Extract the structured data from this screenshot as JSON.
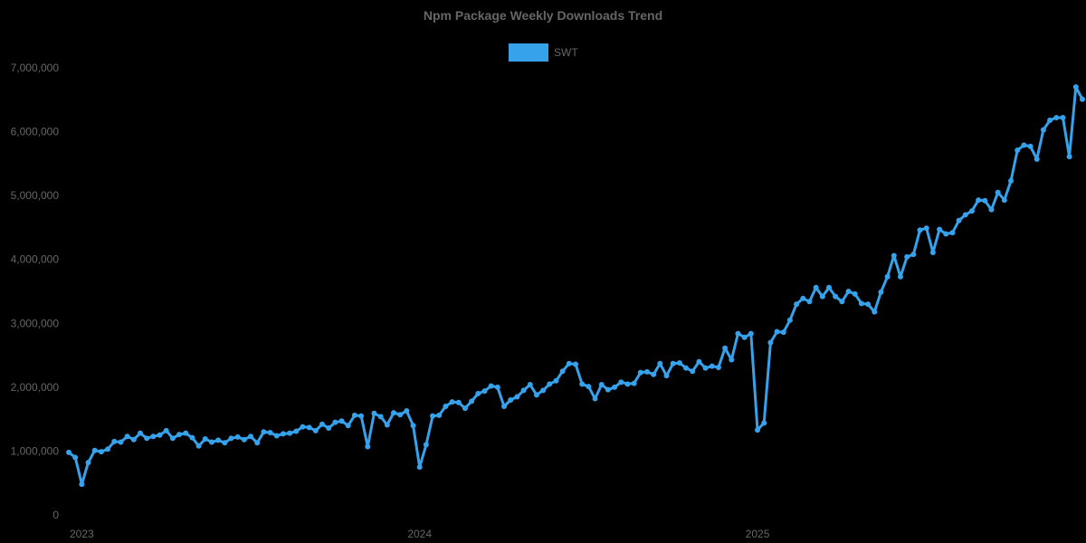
{
  "chart_data": {
    "type": "line",
    "title": "Npm Package Weekly Downloads Trend",
    "xlabel": "",
    "ylabel": "",
    "ylim": [
      0,
      7000000
    ],
    "grid": false,
    "legend_position": "top",
    "y_ticks": [
      "0",
      "1,000,000",
      "2,000,000",
      "3,000,000",
      "4,000,000",
      "5,000,000",
      "6,000,000",
      "7,000,000"
    ],
    "x_ticks": [
      {
        "label": "2023",
        "index": 2
      },
      {
        "label": "2024",
        "index": 54
      },
      {
        "label": "2025",
        "index": 106
      }
    ],
    "series": [
      {
        "name": "SWT",
        "color": "#36a2eb",
        "values": [
          980000,
          900000,
          480000,
          820000,
          1010000,
          990000,
          1030000,
          1150000,
          1140000,
          1230000,
          1180000,
          1280000,
          1200000,
          1230000,
          1250000,
          1320000,
          1200000,
          1260000,
          1280000,
          1210000,
          1080000,
          1190000,
          1140000,
          1170000,
          1130000,
          1200000,
          1220000,
          1180000,
          1230000,
          1130000,
          1300000,
          1290000,
          1240000,
          1270000,
          1280000,
          1310000,
          1380000,
          1370000,
          1320000,
          1420000,
          1360000,
          1450000,
          1470000,
          1400000,
          1560000,
          1550000,
          1070000,
          1590000,
          1540000,
          1410000,
          1600000,
          1570000,
          1630000,
          1400000,
          750000,
          1100000,
          1550000,
          1560000,
          1700000,
          1770000,
          1760000,
          1670000,
          1780000,
          1900000,
          1940000,
          2020000,
          2000000,
          1700000,
          1800000,
          1850000,
          1950000,
          2040000,
          1880000,
          1950000,
          2050000,
          2100000,
          2250000,
          2370000,
          2360000,
          2050000,
          2010000,
          1820000,
          2040000,
          1960000,
          2000000,
          2080000,
          2050000,
          2060000,
          2230000,
          2240000,
          2200000,
          2370000,
          2180000,
          2370000,
          2380000,
          2300000,
          2250000,
          2400000,
          2300000,
          2330000,
          2310000,
          2610000,
          2430000,
          2840000,
          2780000,
          2840000,
          1330000,
          1440000,
          2700000,
          2870000,
          2860000,
          3050000,
          3300000,
          3390000,
          3340000,
          3560000,
          3420000,
          3560000,
          3420000,
          3340000,
          3500000,
          3460000,
          3310000,
          3300000,
          3180000,
          3490000,
          3730000,
          4060000,
          3730000,
          4040000,
          4080000,
          4460000,
          4490000,
          4110000,
          4470000,
          4400000,
          4420000,
          4610000,
          4700000,
          4760000,
          4930000,
          4920000,
          4780000,
          5050000,
          4930000,
          5230000,
          5710000,
          5790000,
          5770000,
          5570000,
          6030000,
          6180000,
          6220000,
          6220000,
          5610000,
          6700000,
          6510000
        ]
      }
    ]
  },
  "legend": {
    "items": [
      {
        "label": "SWT",
        "color": "#36a2eb"
      }
    ]
  }
}
